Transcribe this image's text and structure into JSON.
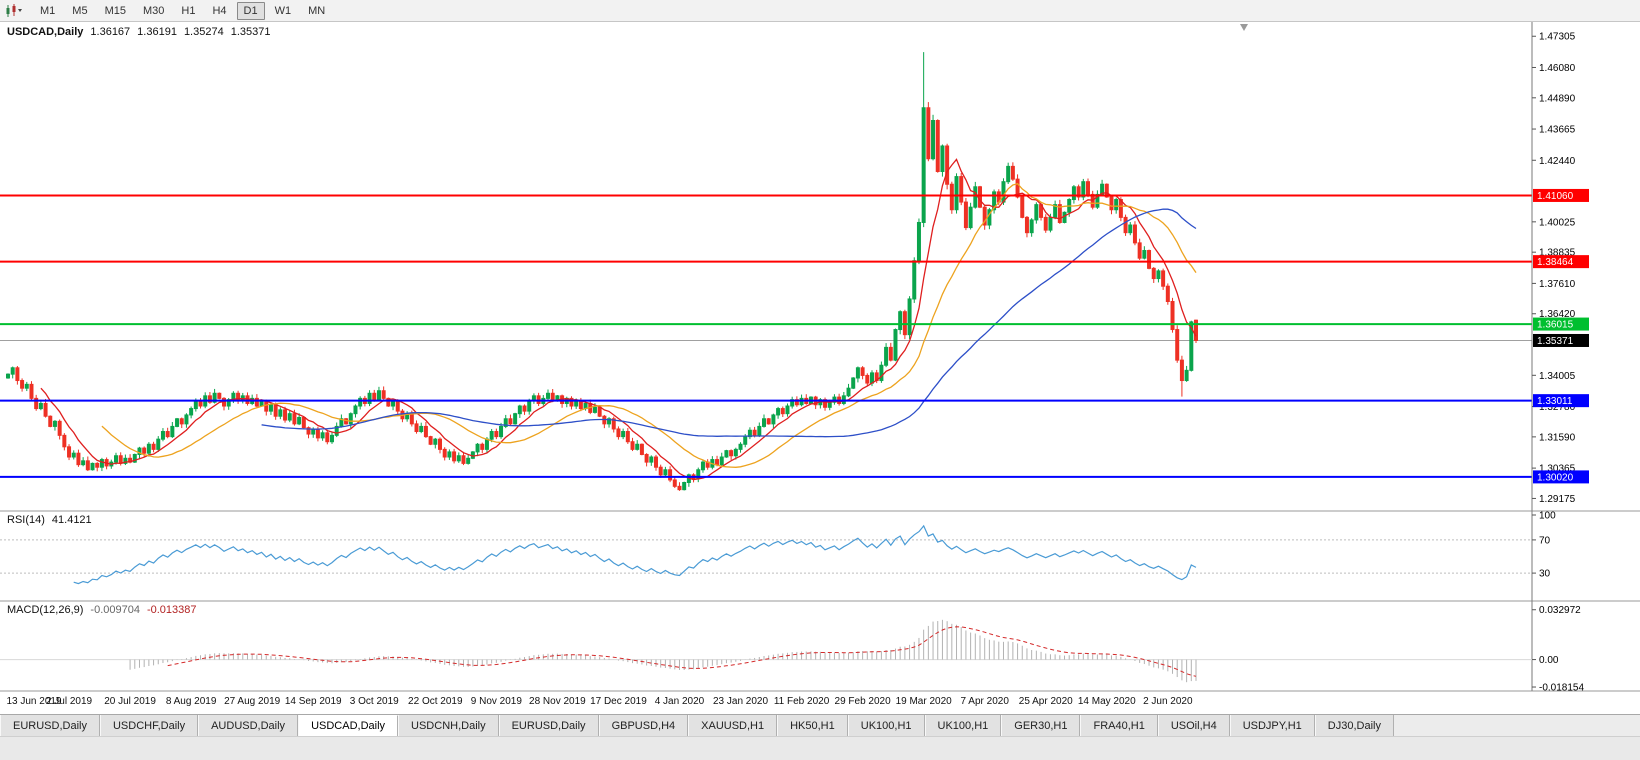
{
  "toolbar": {
    "timeframes": [
      "M1",
      "M5",
      "M15",
      "M30",
      "H1",
      "H4",
      "D1",
      "W1",
      "MN"
    ],
    "active": "D1",
    "icons": [
      "candlestick-chart-icon",
      "caret-down-icon"
    ]
  },
  "header": {
    "symbol": "USDCAD,Daily",
    "open": "1.36167",
    "high": "1.36191",
    "low": "1.35274",
    "close": "1.35371"
  },
  "rsi_panel": {
    "title": "RSI(14)",
    "value": "41.4121",
    "ticks": [
      {
        "value": 100,
        "label": "100"
      },
      {
        "value": 70,
        "label": "70"
      },
      {
        "value": 30,
        "label": "30"
      }
    ],
    "levels": [
      70,
      30
    ]
  },
  "macd_panel": {
    "title": "MACD(12,26,9)",
    "main_value": "-0.009704",
    "signal_value": "-0.013387",
    "ticks": [
      {
        "value": 0.032972,
        "label": "0.032972"
      },
      {
        "value": 0,
        "label": "0.00"
      },
      {
        "value": -0.018154,
        "label": "-0.018154"
      }
    ]
  },
  "tabs": {
    "items": [
      "EURUSD,Daily",
      "USDCHF,Daily",
      "AUDUSD,Daily",
      "USDCAD,Daily",
      "USDCNH,Daily",
      "EURUSD,Daily",
      "GBPUSD,H4",
      "XAUUSD,H1",
      "HK50,H1",
      "UK100,H1",
      "UK100,H1",
      "GER30,H1",
      "FRA40,H1",
      "USOil,H4",
      "USDJPY,H1",
      "DJ30,Daily"
    ],
    "active_index": 3
  },
  "chart_data": {
    "type": "candlestick",
    "symbol": "USDCAD",
    "timeframe": "Daily",
    "ylim": [
      1.288,
      1.4755
    ],
    "first_open": 1.339,
    "closes": [
      1.3405,
      1.343,
      1.338,
      1.335,
      1.3365,
      1.331,
      1.327,
      1.329,
      1.324,
      1.32,
      1.322,
      1.3165,
      1.312,
      1.308,
      1.3095,
      1.305,
      1.3065,
      1.303,
      1.3055,
      1.304,
      1.307,
      1.3045,
      1.306,
      1.3085,
      1.3055,
      1.3075,
      1.306,
      1.309,
      1.3115,
      1.3095,
      1.313,
      1.311,
      1.315,
      1.318,
      1.316,
      1.32,
      1.323,
      1.321,
      1.3245,
      1.327,
      1.33,
      1.328,
      1.332,
      1.3295,
      1.333,
      1.331,
      1.328,
      1.3305,
      1.333,
      1.33,
      1.332,
      1.329,
      1.331,
      1.328,
      1.33,
      1.326,
      1.3285,
      1.324,
      1.3265,
      1.3225,
      1.325,
      1.321,
      1.3235,
      1.3195,
      1.317,
      1.319,
      1.3155,
      1.3175,
      1.314,
      1.3165,
      1.32,
      1.323,
      1.321,
      1.325,
      1.328,
      1.331,
      1.329,
      1.333,
      1.3305,
      1.334,
      1.331,
      1.328,
      1.33,
      1.326,
      1.323,
      1.325,
      1.321,
      1.318,
      1.32,
      1.316,
      1.313,
      1.315,
      1.311,
      1.308,
      1.31,
      1.3065,
      1.3085,
      1.3055,
      1.3075,
      1.31,
      1.313,
      1.311,
      1.315,
      1.318,
      1.316,
      1.32,
      1.323,
      1.321,
      1.325,
      1.328,
      1.326,
      1.33,
      1.332,
      1.329,
      1.331,
      1.333,
      1.33,
      1.332,
      1.329,
      1.331,
      1.328,
      1.33,
      1.327,
      1.329,
      1.3255,
      1.3275,
      1.324,
      1.321,
      1.323,
      1.319,
      1.316,
      1.318,
      1.314,
      1.311,
      1.313,
      1.309,
      1.306,
      1.308,
      1.304,
      1.301,
      1.303,
      1.299,
      1.2965,
      1.2952,
      1.298,
      1.301,
      1.2995,
      1.303,
      1.306,
      1.304,
      1.307,
      1.305,
      1.308,
      1.3105,
      1.3085,
      1.311,
      1.313,
      1.316,
      1.3185,
      1.3165,
      1.32,
      1.323,
      1.321,
      1.3245,
      1.327,
      1.325,
      1.328,
      1.3305,
      1.3285,
      1.331,
      1.329,
      1.3315,
      1.3285,
      1.3305,
      1.3275,
      1.3295,
      1.3315,
      1.329,
      1.332,
      1.335,
      1.339,
      1.343,
      1.34,
      1.337,
      1.341,
      1.338,
      1.344,
      1.351,
      1.346,
      1.358,
      1.365,
      1.356,
      1.37,
      1.385,
      1.4,
      1.445,
      1.425,
      1.44,
      1.42,
      1.43,
      1.415,
      1.405,
      1.418,
      1.408,
      1.398,
      1.406,
      1.414,
      1.406,
      1.399,
      1.405,
      1.412,
      1.408,
      1.416,
      1.422,
      1.417,
      1.41,
      1.402,
      1.396,
      1.401,
      1.407,
      1.402,
      1.397,
      1.402,
      1.407,
      1.4,
      1.404,
      1.409,
      1.414,
      1.41,
      1.416,
      1.411,
      1.406,
      1.411,
      1.415,
      1.41,
      1.405,
      1.409,
      1.402,
      1.396,
      1.399,
      1.392,
      1.386,
      1.389,
      1.382,
      1.378,
      1.381,
      1.375,
      1.369,
      1.358,
      1.346,
      1.338,
      1.342,
      1.361,
      1.35371
    ],
    "last_bar": {
      "open": 1.36167,
      "high": 1.36191,
      "low": 1.35274,
      "close": 1.35371
    },
    "peak": {
      "index": 195,
      "high": 1.4668
    },
    "trough": {
      "index": 250,
      "low": 1.3317
    },
    "current_price": 1.35371,
    "levels": [
      {
        "price": 1.4106,
        "color": "#ff0000",
        "label": "1.41060"
      },
      {
        "price": 1.38464,
        "color": "#ff0000",
        "label": "1.38464"
      },
      {
        "price": 1.36015,
        "color": "#00bf2f",
        "label": "1.36015"
      },
      {
        "price": 1.33011,
        "color": "#0000ff",
        "label": "1.33011"
      },
      {
        "price": 1.3002,
        "color": "#0000ff",
        "label": "1.30020"
      }
    ],
    "axis_ticks": [
      1.47305,
      1.4608,
      1.4489,
      1.43665,
      1.4244,
      1.40025,
      1.38835,
      1.3761,
      1.3642,
      1.34005,
      1.3278,
      1.3159,
      1.30365,
      1.29175
    ],
    "price_badges": [
      {
        "label": "1.41060",
        "price": 1.4106,
        "bg": "#ff0000"
      },
      {
        "label": "1.38464",
        "price": 1.38464,
        "bg": "#ff0000"
      },
      {
        "label": "1.36015",
        "price": 1.36015,
        "bg": "#00bf2f"
      },
      {
        "label": "1.35371",
        "price": 1.35371,
        "bg": "#000000"
      },
      {
        "label": "1.33011",
        "price": 1.33011,
        "bg": "#0000ff"
      },
      {
        "label": "1.30020",
        "price": 1.3002,
        "bg": "#0000ff"
      }
    ],
    "date_labels": [
      {
        "label": "13 Jun 2019",
        "day": 0
      },
      {
        "label": "2 Jul 2019",
        "day": 13
      },
      {
        "label": "20 Jul 2019",
        "day": 26
      },
      {
        "label": "8 Aug 2019",
        "day": 39
      },
      {
        "label": "27 Aug 2019",
        "day": 52
      },
      {
        "label": "14 Sep 2019",
        "day": 65
      },
      {
        "label": "3 Oct 2019",
        "day": 78
      },
      {
        "label": "22 Oct 2019",
        "day": 91
      },
      {
        "label": "9 Nov 2019",
        "day": 104
      },
      {
        "label": "28 Nov 2019",
        "day": 117
      },
      {
        "label": "17 Dec 2019",
        "day": 130
      },
      {
        "label": "4 Jan 2020",
        "day": 143
      },
      {
        "label": "23 Jan 2020",
        "day": 156
      },
      {
        "label": "11 Feb 2020",
        "day": 169
      },
      {
        "label": "29 Feb 2020",
        "day": 182
      },
      {
        "label": "19 Mar 2020",
        "day": 195
      },
      {
        "label": "7 Apr 2020",
        "day": 208
      },
      {
        "label": "25 Apr 2020",
        "day": 221
      },
      {
        "label": "14 May 2020",
        "day": 234
      },
      {
        "label": "2 Jun 2020",
        "day": 247
      }
    ],
    "moving_averages": [
      {
        "period": 8,
        "color": "#df1f1f"
      },
      {
        "period": 21,
        "color": "#eda31f"
      },
      {
        "period": 55,
        "color": "#2d4fc8"
      }
    ],
    "indicators": {
      "rsi": {
        "period": 14,
        "current": 41.4121,
        "color": "#4a9bd5"
      },
      "macd": {
        "fast": 12,
        "slow": 26,
        "signal": 9,
        "main": -0.009704,
        "signal_val": -0.013387,
        "hist_color": "#b2b2b2",
        "signal_color": "#d42a2a",
        "range": [
          -0.0188,
          0.0361
        ]
      }
    },
    "colors": {
      "bull": "#0aa44c",
      "bear": "#ee3124",
      "price_line": "#a0a0a0",
      "axis_line": "#7a7a7a",
      "grid_divider": "#9a9a9a"
    }
  }
}
